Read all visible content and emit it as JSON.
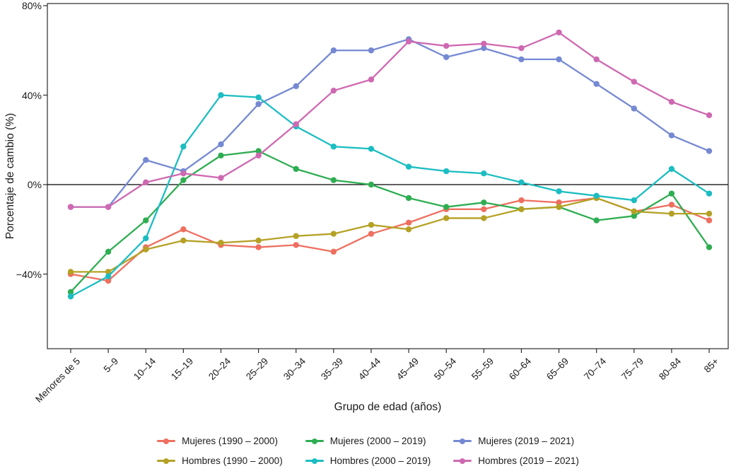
{
  "chart_data": {
    "type": "line",
    "title": "",
    "xlabel": "Grupo de edad (años)",
    "ylabel": "Porcentaje de cambio (%)",
    "categories": [
      "Menores de 5",
      "5–9",
      "10–14",
      "15–19",
      "20–24",
      "25–29",
      "30–34",
      "35–39",
      "40–44",
      "45–49",
      "50–54",
      "55–59",
      "60–64",
      "65–69",
      "70–74",
      "75–79",
      "80–84",
      "85+"
    ],
    "y_ticks": [
      {
        "label": "80%",
        "value": 80
      },
      {
        "label": "40%",
        "value": 40
      },
      {
        "label": "0%",
        "value": 0
      },
      {
        "label": "−40%",
        "value": -40
      }
    ],
    "ylim": [
      -73,
      81
    ],
    "grid": false,
    "panel_border": true,
    "zero_line": true,
    "legend_position": "bottom",
    "marker": "circle",
    "series": [
      {
        "name": "Mujeres (1990 – 2000)",
        "color": "#EE6F5F",
        "values": [
          -40,
          -43,
          -28,
          -20,
          -27,
          -28,
          -27,
          -30,
          -22,
          -17,
          -11,
          -11,
          -7,
          -8,
          -6,
          -12,
          -9,
          -16
        ]
      },
      {
        "name": "Mujeres (2000 – 2019)",
        "color": "#2FAD52",
        "values": [
          -48,
          -30,
          -16,
          2,
          13,
          15,
          7,
          2,
          0,
          -6,
          -10,
          -8,
          -11,
          -10,
          -16,
          -14,
          -4,
          -28
        ]
      },
      {
        "name": "Mujeres (2019 – 2021)",
        "color": "#7589D3",
        "values": [
          -10,
          -10,
          11,
          6,
          18,
          36,
          44,
          60,
          60,
          65,
          57,
          61,
          56,
          56,
          45,
          34,
          22,
          15
        ]
      },
      {
        "name": "Hombres (1990 – 2000)",
        "color": "#B5A125",
        "values": [
          -39,
          -39,
          -29,
          -25,
          -26,
          -25,
          -23,
          -22,
          -18,
          -20,
          -15,
          -15,
          -11,
          -10,
          -6,
          -12,
          -13,
          -13
        ]
      },
      {
        "name": "Hombres (2000 – 2019)",
        "color": "#1CBDC2",
        "values": [
          -50,
          -41,
          -24,
          17,
          40,
          39,
          26,
          17,
          16,
          8,
          6,
          5,
          1,
          -3,
          -5,
          -7,
          7,
          -4
        ]
      },
      {
        "name": "Hombres (2019 – 2021)",
        "color": "#CE69B1",
        "values": [
          -10,
          -10,
          1,
          5,
          3,
          13,
          27,
          42,
          47,
          64,
          62,
          63,
          61,
          68,
          56,
          46,
          37,
          31
        ]
      }
    ]
  }
}
